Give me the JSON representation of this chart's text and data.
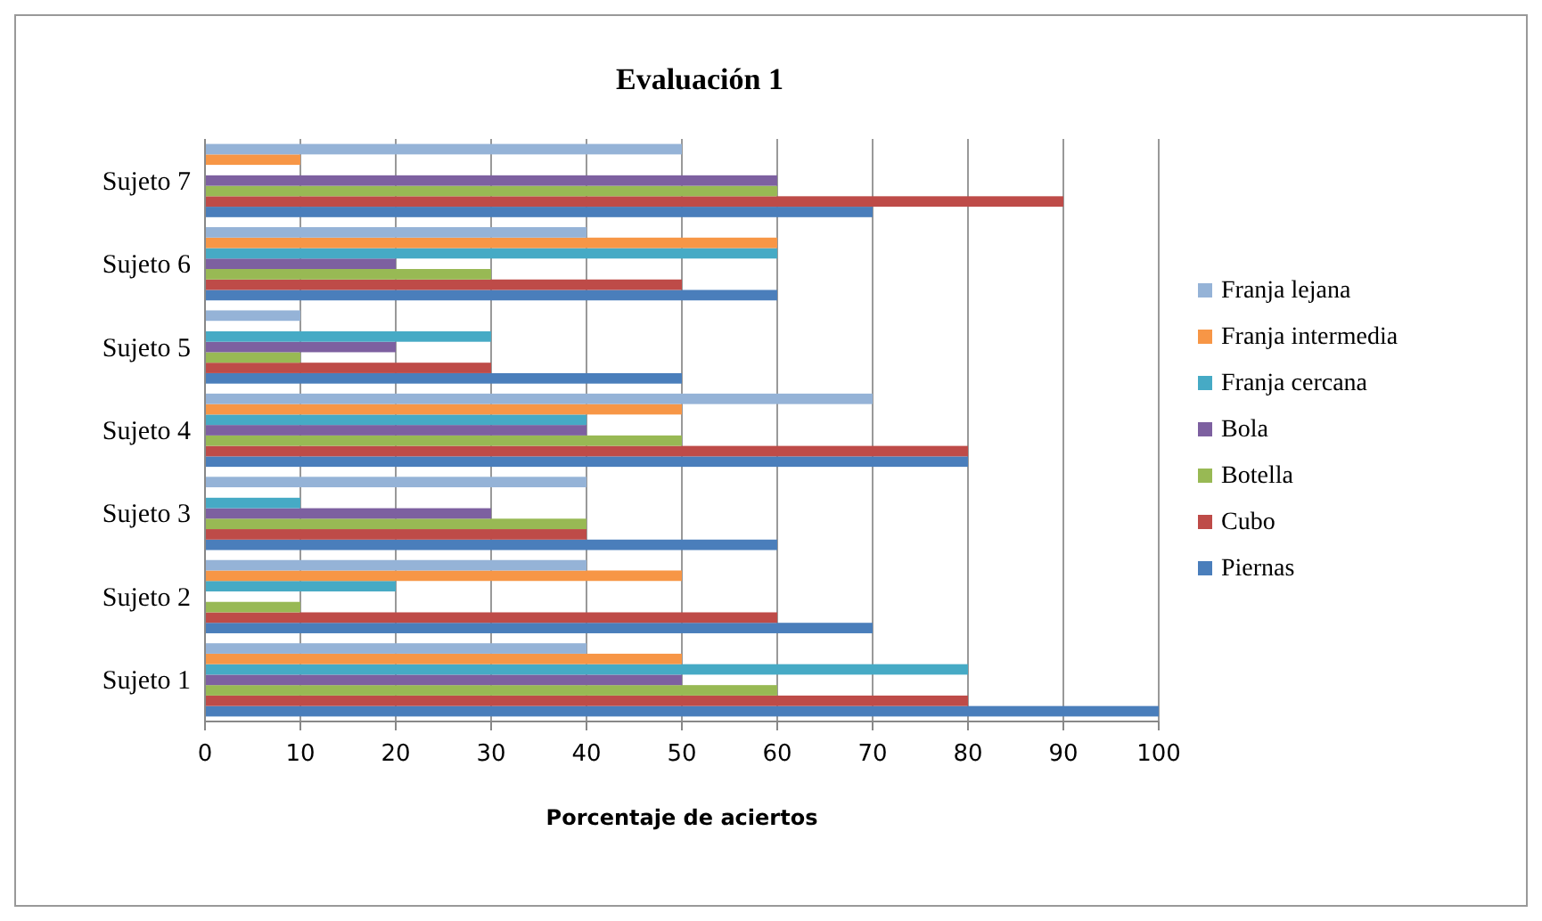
{
  "chart_data": {
    "type": "bar",
    "orientation": "horizontal",
    "title": "Evaluación 1",
    "xlabel": "Porcentaje de aciertos",
    "categories": [
      "Sujeto 7",
      "Sujeto 6",
      "Sujeto 5",
      "Sujeto 4",
      "Sujeto 3",
      "Sujeto 2",
      "Sujeto 1"
    ],
    "series": [
      {
        "name": "Piernas",
        "color": "#4a7ebb",
        "values": [
          70,
          60,
          50,
          80,
          60,
          70,
          100
        ]
      },
      {
        "name": "Cubo",
        "color": "#be4b48",
        "values": [
          90,
          50,
          30,
          80,
          40,
          60,
          80
        ]
      },
      {
        "name": "Botella",
        "color": "#98b954",
        "values": [
          60,
          30,
          10,
          50,
          40,
          10,
          60
        ]
      },
      {
        "name": "Bola",
        "color": "#7d60a0",
        "values": [
          60,
          20,
          20,
          40,
          30,
          0,
          50
        ]
      },
      {
        "name": "Franja cercana",
        "color": "#46aac5",
        "values": [
          0,
          60,
          30,
          40,
          10,
          20,
          80
        ]
      },
      {
        "name": "Franja intermedia",
        "color": "#f79646",
        "values": [
          10,
          60,
          0,
          50,
          0,
          50,
          50
        ]
      },
      {
        "name": "Franja lejana",
        "color": "#95b3d7",
        "values": [
          50,
          40,
          10,
          70,
          40,
          40,
          40
        ]
      }
    ],
    "xlim": [
      0,
      100
    ],
    "xticks": [
      0,
      10,
      20,
      30,
      40,
      50,
      60,
      70,
      80,
      90,
      100
    ],
    "grid": "x",
    "legend": "right"
  }
}
